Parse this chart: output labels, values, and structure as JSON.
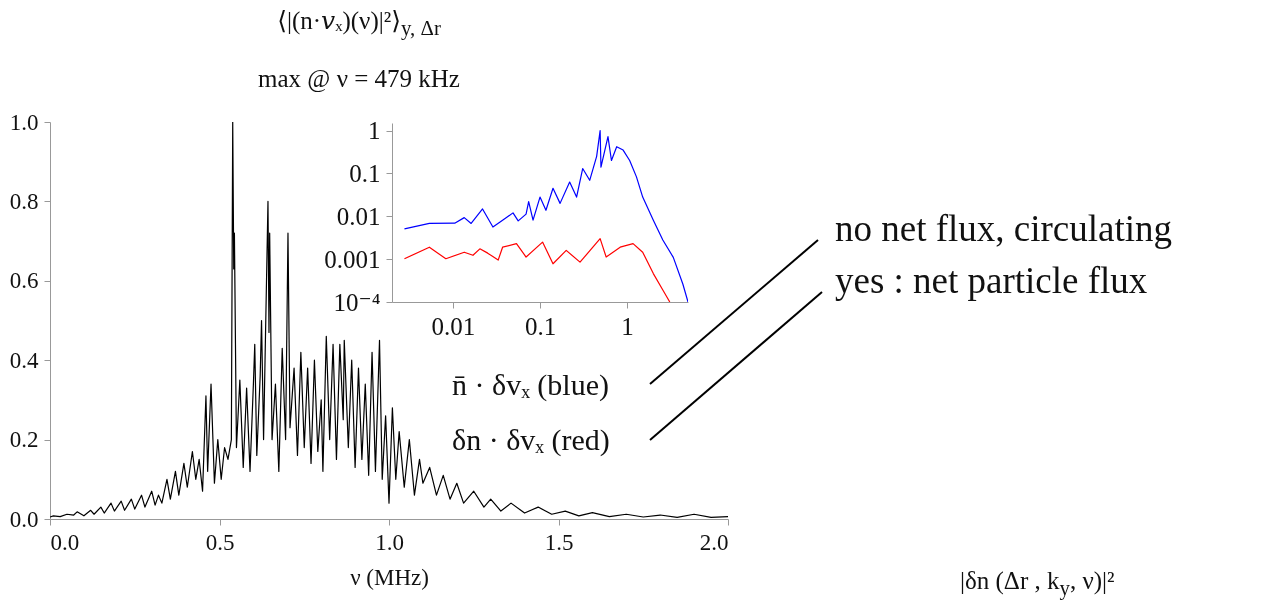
{
  "chart_data": [
    {
      "type": "line",
      "title": "⟨|(n·𝑣ₓ)(ν)|²⟩$_{y, Δr}$",
      "subtitle": "max @ ν = 479 kHz",
      "xlabel": "ν (MHz)",
      "series": [
        {
          "color": "#000000",
          "x": [
            0,
            0.01,
            0.03,
            0.05,
            0.07,
            0.08,
            0.1,
            0.12,
            0.13,
            0.15,
            0.16,
            0.18,
            0.19,
            0.21,
            0.22,
            0.24,
            0.25,
            0.27,
            0.28,
            0.3,
            0.31,
            0.32,
            0.33,
            0.345,
            0.355,
            0.37,
            0.38,
            0.395,
            0.405,
            0.42,
            0.43,
            0.44,
            0.45,
            0.46,
            0.465,
            0.475,
            0.485,
            0.495,
            0.505,
            0.515,
            0.525,
            0.535,
            0.539,
            0.542,
            0.544,
            0.55,
            0.56,
            0.57,
            0.58,
            0.59,
            0.6,
            0.604,
            0.61,
            0.62,
            0.624,
            0.63,
            0.643,
            0.646,
            0.648,
            0.655,
            0.665,
            0.675,
            0.685,
            0.695,
            0.702,
            0.708,
            0.72,
            0.73,
            0.74,
            0.75,
            0.76,
            0.77,
            0.78,
            0.79,
            0.8,
            0.805,
            0.815,
            0.825,
            0.835,
            0.845,
            0.855,
            0.865,
            0.868,
            0.88,
            0.89,
            0.9,
            0.91,
            0.92,
            0.93,
            0.94,
            0.95,
            0.96,
            0.972,
            0.98,
            0.99,
            1.0,
            1.01,
            1.02,
            1.03,
            1.045,
            1.06,
            1.075,
            1.09,
            1.1,
            1.12,
            1.14,
            1.16,
            1.18,
            1.2,
            1.22,
            1.25,
            1.28,
            1.3,
            1.33,
            1.36,
            1.4,
            1.44,
            1.48,
            1.52,
            1.56,
            1.6,
            1.65,
            1.7,
            1.75,
            1.8,
            1.85,
            1.9,
            1.95,
            2.0
          ],
          "values": [
            0.005,
            0.008,
            0.006,
            0.012,
            0.01,
            0.018,
            0.008,
            0.022,
            0.012,
            0.03,
            0.015,
            0.04,
            0.02,
            0.045,
            0.022,
            0.05,
            0.025,
            0.06,
            0.03,
            0.07,
            0.035,
            0.06,
            0.04,
            0.1,
            0.05,
            0.12,
            0.06,
            0.14,
            0.08,
            0.17,
            0.1,
            0.15,
            0.07,
            0.31,
            0.12,
            0.34,
            0.09,
            0.2,
            0.1,
            0.18,
            0.15,
            0.2,
            1.0,
            0.63,
            0.72,
            0.18,
            0.35,
            0.13,
            0.33,
            0.12,
            0.34,
            0.44,
            0.16,
            0.36,
            0.5,
            0.2,
            0.8,
            0.47,
            0.72,
            0.2,
            0.34,
            0.12,
            0.43,
            0.2,
            0.72,
            0.23,
            0.38,
            0.16,
            0.42,
            0.18,
            0.38,
            0.14,
            0.4,
            0.17,
            0.3,
            0.12,
            0.46,
            0.2,
            0.44,
            0.15,
            0.44,
            0.25,
            0.45,
            0.18,
            0.4,
            0.13,
            0.38,
            0.15,
            0.34,
            0.11,
            0.42,
            0.12,
            0.45,
            0.1,
            0.26,
            0.04,
            0.28,
            0.1,
            0.22,
            0.08,
            0.2,
            0.06,
            0.15,
            0.09,
            0.13,
            0.06,
            0.11,
            0.05,
            0.09,
            0.04,
            0.07,
            0.03,
            0.05,
            0.02,
            0.04,
            0.015,
            0.03,
            0.012,
            0.02,
            0.008,
            0.016,
            0.006,
            0.012,
            0.005,
            0.01,
            0.004,
            0.012,
            0.004,
            0.006
          ]
        }
      ],
      "xlim": [
        0,
        2
      ],
      "ylim": [
        0,
        1
      ],
      "xticks": [
        {
          "value": 0,
          "label": "0.0"
        },
        {
          "value": 0.5,
          "label": "0.5"
        },
        {
          "value": 1,
          "label": "1.0"
        },
        {
          "value": 1.5,
          "label": "1.5"
        },
        {
          "value": 2,
          "label": "2.0"
        }
      ],
      "yticks": [
        {
          "value": 0,
          "label": "0.0"
        },
        {
          "value": 0.2,
          "label": "0.2"
        },
        {
          "value": 0.4,
          "label": "0.4"
        },
        {
          "value": 0.6,
          "label": "0.6"
        },
        {
          "value": 0.8,
          "label": "0.8"
        },
        {
          "value": 1,
          "label": "1.0"
        }
      ],
      "annotations": [
        "|δn (Δr , k$_{y}$, ν)|²"
      ]
    },
    {
      "type": "line",
      "log": "xy",
      "series": [
        {
          "color": "#0000ff",
          "x": [
            0.00278,
            0.00537,
            0.0105,
            0.0135,
            0.0162,
            0.0219,
            0.0288,
            0.0372,
            0.049,
            0.0562,
            0.0692,
            0.0741,
            0.0832,
            0.1,
            0.117,
            0.141,
            0.17,
            0.219,
            0.263,
            0.309,
            0.372,
            0.447,
            0.49,
            0.501,
            0.603,
            0.661,
            0.759,
            0.9,
            1.07,
            1.28,
            1.51,
            2.0,
            2.57,
            3.39,
            4.37,
            5.0
          ],
          "values": [
            0.0051,
            0.0068,
            0.0069,
            0.0093,
            0.0068,
            0.0148,
            0.0056,
            0.0081,
            0.012,
            0.0078,
            0.0112,
            0.022,
            0.0081,
            0.028,
            0.0138,
            0.045,
            0.02,
            0.063,
            0.028,
            0.13,
            0.069,
            0.25,
            1.0,
            0.14,
            0.72,
            0.2,
            0.42,
            0.35,
            0.2,
            0.083,
            0.028,
            0.0081,
            0.0028,
            0.0011,
            0.00026,
            0.0001
          ]
        },
        {
          "color": "#ff0000",
          "x": [
            0.00278,
            0.00537,
            0.0083,
            0.0135,
            0.017,
            0.0204,
            0.0251,
            0.0331,
            0.0372,
            0.0537,
            0.0692,
            0.107,
            0.141,
            0.2,
            0.288,
            0.49,
            0.575,
            0.832,
            1.17,
            1.51,
            2.0,
            2.57,
            3.09
          ],
          "values": [
            0.00102,
            0.0019,
            0.00102,
            0.00145,
            0.00123,
            0.00174,
            0.00138,
            0.00095,
            0.0019,
            0.0023,
            0.00112,
            0.0025,
            0.00078,
            0.0016,
            0.00085,
            0.003,
            0.00112,
            0.0019,
            0.0023,
            0.00145,
            0.00046,
            0.00019,
            0.0001
          ]
        }
      ],
      "xlim": [
        0.002,
        5
      ],
      "ylim": [
        0.0001,
        1.5
      ],
      "xticks": [
        0.01,
        0.1,
        1
      ],
      "yticks": [
        1,
        0.1,
        0.01,
        0.001,
        {
          "value": 0.0001,
          "label": "10⁻⁴"
        }
      ],
      "annotations": [
        "n̄ · δvₓ (blue)",
        "δn · δvₓ (red)",
        "no net flux, circulating",
        "yes : net particle flux"
      ]
    }
  ]
}
